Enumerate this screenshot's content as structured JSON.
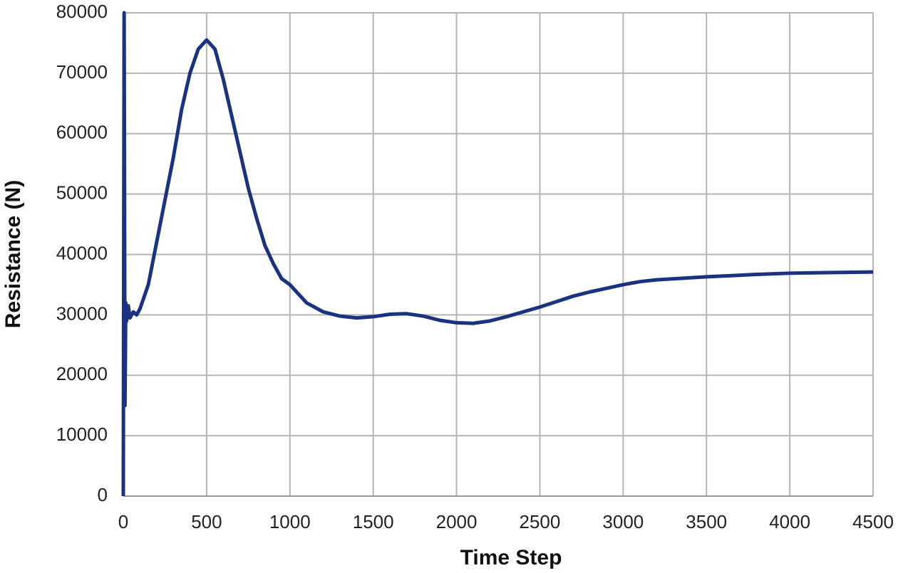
{
  "chart_data": {
    "type": "line",
    "x_label": "Time Step",
    "y_label": "Resistance (N)",
    "x": [
      0,
      5,
      10,
      15,
      20,
      30,
      40,
      60,
      80,
      100,
      150,
      200,
      250,
      300,
      350,
      400,
      450,
      500,
      550,
      600,
      650,
      700,
      750,
      800,
      850,
      900,
      950,
      1000,
      1100,
      1200,
      1300,
      1400,
      1500,
      1600,
      1700,
      1800,
      1900,
      2000,
      2100,
      2200,
      2300,
      2400,
      2500,
      2600,
      2700,
      2800,
      2900,
      3000,
      3100,
      3200,
      3500,
      3800,
      4000,
      4500
    ],
    "series": [
      {
        "name": "Resistance",
        "color": "#1b3281",
        "values": [
          0,
          80000,
          15000,
          32000,
          29000,
          31500,
          29500,
          30500,
          30000,
          31000,
          35000,
          42000,
          49000,
          56000,
          64000,
          70000,
          74000,
          75500,
          74000,
          69000,
          63000,
          57000,
          51000,
          46000,
          41500,
          38500,
          36000,
          35000,
          32000,
          30500,
          29800,
          29500,
          29700,
          30100,
          30200,
          29800,
          29100,
          28700,
          28600,
          29000,
          29700,
          30500,
          31300,
          32200,
          33100,
          33800,
          34400,
          35000,
          35500,
          35800,
          36300,
          36700,
          36900,
          37100
        ]
      }
    ],
    "xlim": [
      0,
      4500
    ],
    "xticks": [
      0,
      500,
      1000,
      1500,
      2000,
      2500,
      3000,
      3500,
      4000,
      4500
    ],
    "ylim": [
      0,
      80000
    ],
    "yticks": [
      0,
      10000,
      20000,
      30000,
      40000,
      50000,
      60000,
      70000,
      80000
    ],
    "grid": true
  }
}
